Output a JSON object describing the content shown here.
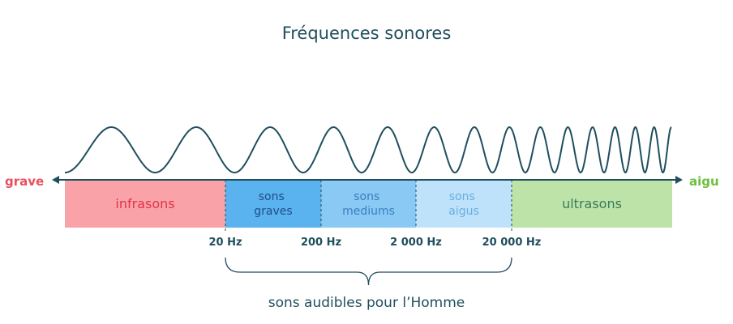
{
  "title": "Fréquences sonores",
  "axis": {
    "left_label": "grave",
    "right_label": "aigu"
  },
  "bands": [
    {
      "lines": [
        "infrasons"
      ],
      "color": "#f9a3a8",
      "text_color": "#e0334a"
    },
    {
      "lines": [
        "sons",
        "graves"
      ],
      "color": "#5ab2ef",
      "text_color": "#1c4f8a"
    },
    {
      "lines": [
        "sons",
        "mediums"
      ],
      "color": "#89c9f4",
      "text_color": "#3b7fc0"
    },
    {
      "lines": [
        "sons",
        "aigus"
      ],
      "color": "#bde2fa",
      "text_color": "#6aaee0"
    },
    {
      "lines": [
        "ultrasons"
      ],
      "color": "#bde3a9",
      "text_color": "#3b7a5a"
    }
  ],
  "frequency_labels": [
    "20 Hz",
    "200 Hz",
    "2 000 Hz",
    "20 000 Hz"
  ],
  "brace_caption": "sons audibles pour l’Homme",
  "colors": {
    "text": "#1f4e5e",
    "axis": "#1f4e5e",
    "wave": "#1f4e5e",
    "grave": "#e8505f",
    "aigu": "#6cbf3f"
  }
}
